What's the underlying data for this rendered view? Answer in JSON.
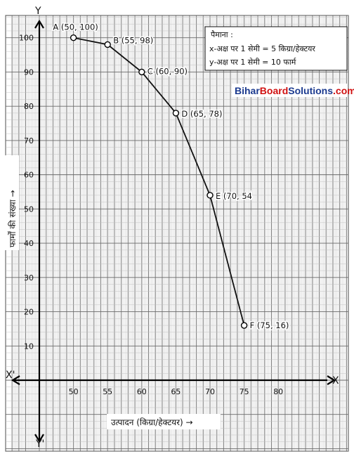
{
  "chart_data": {
    "type": "line",
    "points": [
      {
        "x": 50,
        "y": 100,
        "label": "A (50, 100)"
      },
      {
        "x": 55,
        "y": 98,
        "label": "B (55, 98)"
      },
      {
        "x": 60,
        "y": 90,
        "label": "C (60, 90)"
      },
      {
        "x": 65,
        "y": 78,
        "label": "D (65, 78)"
      },
      {
        "x": 70,
        "y": 54,
        "label": "E (70, 54"
      },
      {
        "x": 75,
        "y": 16,
        "label": "F (75, 16)"
      }
    ],
    "x_ticks": [
      50,
      55,
      60,
      65,
      70,
      75,
      80
    ],
    "y_ticks": [
      10,
      20,
      30,
      40,
      50,
      60,
      70,
      80,
      90,
      100
    ],
    "xlabel": "उत्पादन (किग्रा/हेक्टयर) →",
    "ylabel": "फार्मों की संख्या →",
    "axis_letters": {
      "x_pos": "X",
      "x_neg": "X'",
      "y_pos": "Y",
      "y_neg": "Y'"
    },
    "xlim": [
      45,
      83
    ],
    "ylim": [
      -20,
      103
    ],
    "grid": true
  },
  "scale_box": {
    "title": "पैमाना :",
    "line1": "x-अक्ष पर 1 सेमी = 5 किग्रा/हेक्टयर",
    "line2": "y-अक्ष पर 1 सेमी = 10 फार्म"
  },
  "watermark": {
    "part1": "Bihar",
    "part2": "Board",
    "part3": "Solutions",
    "part4": ".com"
  },
  "colors": {
    "grid_minor": "#bdbdbd",
    "grid_major": "#6a6a6a",
    "line": "#111111",
    "wm_blue": "#1b3a8f",
    "wm_red": "#d01010"
  }
}
